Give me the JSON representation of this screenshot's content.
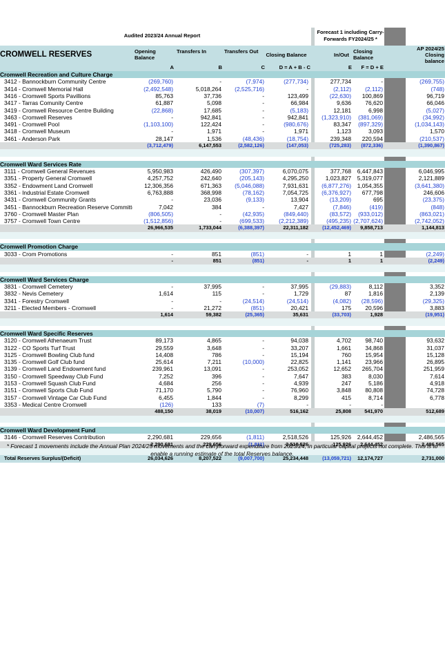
{
  "header": {
    "left_title": "Audited 2023/24 Annual Report",
    "right_title": "Forecast 1 including Carry-Forwards FY2024/25 *",
    "report_title": "CROMWELL RESERVES",
    "col_opening": "Opening Balance",
    "col_transfers_in": "Transfers In",
    "col_transfers_out": "Transfers Out",
    "col_closing": "Closing Balance",
    "col_inout": "In/Out",
    "col_closing2": "Closing Balance",
    "col_ap": "AP 2024/25 Closing balance",
    "code_a": "A",
    "code_b": "B",
    "code_c": "C",
    "code_d": "D = A + B - C",
    "code_e": "E",
    "code_f": "F = D + E"
  },
  "sections": [
    {
      "title": "Cromwell Recreation and Culture Charge",
      "rows": [
        [
          "3412 - Bannockburn Community Centre",
          "(269,760)",
          "-",
          "(7,974)",
          "(277,734)",
          "277,734",
          "-",
          "(269,755)"
        ],
        [
          "3414 - Cromwell Memorial Hall",
          "(2,492,548)",
          "5,018,264",
          "(2,525,716)",
          "-",
          "(2,112)",
          "(2,112)",
          "(748)"
        ],
        [
          "3416 - Cromwell Sports Pavillions",
          "85,763",
          "37,736",
          "-",
          "123,499",
          "(22,630)",
          "100,869",
          "96,719"
        ],
        [
          "3417 - Tarras Comunity Centre",
          "61,887",
          "5,098",
          "-",
          "66,984",
          "9,636",
          "76,620",
          "66,046"
        ],
        [
          "3419 - Cromwell Resource Centre Building",
          "(22,868)",
          "17,685",
          "-",
          "(5,183)",
          "12,181",
          "6,998",
          "(5,027)"
        ],
        [
          "3463 - Cromwell Reserves",
          "-",
          "942,841",
          "-",
          "942,841",
          "(1,323,910)",
          "(381,069)",
          "(34,992)"
        ],
        [
          "3491 - Cromwell Pool",
          "(1,103,100)",
          "122,424",
          "-",
          "(980,676)",
          "83,347",
          "(897,329)",
          "(1,034,143)"
        ],
        [
          "3418 - Cromwell Museum",
          "-",
          "1,971",
          "-",
          "1,971",
          "1,123",
          "3,093",
          "1,570"
        ],
        [
          "3461 - Anderson Park",
          "28,147",
          "1,536",
          "(48,436)",
          "(18,754)",
          "239,348",
          "220,594",
          "(210,537)"
        ]
      ],
      "total": [
        "(3,712,479)",
        "6,147,553",
        "(2,582,126)",
        "(147,053)",
        "(725,283)",
        "(872,336)",
        "(1,390,867)"
      ]
    },
    {
      "title": "Cromwell Ward Services Rate",
      "rows": [
        [
          "3111 - Cromwell General Revenues",
          "5,950,983",
          "426,490",
          "(307,397)",
          "6,070,075",
          "377,768",
          "6,447,843",
          "6,046,995"
        ],
        [
          "3351 - Property General Cromwell",
          "4,257,752",
          "242,640",
          "(205,143)",
          "4,295,250",
          "1,023,827",
          "5,319,077",
          "2,121,889"
        ],
        [
          "3352 - Endowment Land Cromwell",
          "12,306,356",
          "671,363",
          "(5,046,088)",
          "7,931,631",
          "(6,877,276)",
          "1,054,355",
          "(3,641,380)"
        ],
        [
          "3361 - Industrial Estate Cromwell",
          "6,763,888",
          "368,998",
          "(78,162)",
          "7,054,725",
          "(6,376,927)",
          "677,798",
          "246,606"
        ],
        [
          "3431 - Cromwell Community Grants",
          "-",
          "23,036",
          "(9,133)",
          "13,904",
          "(13,209)",
          "695",
          "(23,375)"
        ],
        [
          "3451 - Bannockburn Recreation Reserve Committee",
          "7,042",
          "384",
          "-",
          "7,427",
          "(7,846)",
          "(419)",
          "(848)"
        ],
        [
          "3760 - Cromwell Master Plan",
          "(806,505)",
          "-",
          "(42,935)",
          "(849,440)",
          "(83,572)",
          "(933,012)",
          "(863,021)"
        ],
        [
          "3757 - Cromwell Town Centre",
          "(1,512,856)",
          "-",
          "(699,533)",
          "(2,212,389)",
          "(495,235)",
          "(2,707,624)",
          "(2,742,052)"
        ]
      ],
      "total": [
        "26,966,535",
        "1,733,044",
        "(6,388,397)",
        "22,311,182",
        "(12,452,469)",
        "9,858,713",
        "1,144,813"
      ]
    },
    {
      "title": "Cromwell Promotion Charge",
      "rows": [
        [
          "3033 - Crom Promotions",
          "-",
          "851",
          "(851)",
          "-",
          "1",
          "1",
          "(2,249)"
        ]
      ],
      "total": [
        "-",
        "851",
        "(851)",
        "-",
        "1",
        "1",
        "(2,249)"
      ]
    },
    {
      "title": "Cromwell Ward Services Charge",
      "rows": [
        [
          "3831 - Cromwell Cemetery",
          "-",
          "37,995",
          "-",
          "37,995",
          "(29,883)",
          "8,112",
          "3,352"
        ],
        [
          "3832 - Nevis Cemetery",
          "1,614",
          "115",
          "-",
          "1,729",
          "87",
          "1,816",
          "2,139"
        ],
        [
          "3341 - Forestry Cromwell",
          "-",
          "-",
          "(24,514)",
          "(24,514)",
          "(4,082)",
          "(28,596)",
          "(29,325)"
        ],
        [
          "3211 - Elected Members - Cromwell",
          "-",
          "21,272",
          "(851)",
          "20,421",
          "175",
          "20,596",
          "3,883"
        ]
      ],
      "total": [
        "1,614",
        "59,382",
        "(25,365)",
        "35,631",
        "(33,703)",
        "1,928",
        "(19,951)"
      ]
    },
    {
      "title": "Cromwell Ward Specific Reserves",
      "rows": [
        [
          "3120 - Cromwell Athenaeum Trust",
          "89,173",
          "4,865",
          "-",
          "94,038",
          "4,702",
          "98,740",
          "93,632"
        ],
        [
          "3122 - CO Sports Turf Trust",
          "29,559",
          "3,648",
          "-",
          "33,207",
          "1,661",
          "34,868",
          "31,037"
        ],
        [
          "3125 - Cromwell Bowling Club fund",
          "14,408",
          "786",
          "-",
          "15,194",
          "760",
          "15,954",
          "15,128"
        ],
        [
          "3135 - Cromwell Golf Club fund",
          "25,614",
          "7,211",
          "(10,000)",
          "22,825",
          "1,141",
          "23,966",
          "26,895"
        ],
        [
          "3139 - Cromwell Land Endowment fund",
          "239,961",
          "13,091",
          "-",
          "253,052",
          "12,652",
          "265,704",
          "251,959"
        ],
        [
          "3150 - Cromwell Speedway Club Fund",
          "7,252",
          "396",
          "-",
          "7,647",
          "383",
          "8,030",
          "7,614"
        ],
        [
          "3153 - Cromwell Squash Club Fund",
          "4,684",
          "256",
          "-",
          "4,939",
          "247",
          "5,186",
          "4,918"
        ],
        [
          "3151 - Cromwell Sports Club Fund",
          "71,170",
          "5,790",
          "-",
          "76,960",
          "3,848",
          "80,808",
          "74,728"
        ],
        [
          "3157 - Cromwell Vintage Car Club Fund",
          "6,455",
          "1,844",
          "-",
          "8,299",
          "415",
          "8,714",
          "6,778"
        ],
        [
          "3353 - Medical Centre Cromwell",
          "(126)",
          "133",
          "(7)",
          "-",
          "-",
          "-",
          ""
        ]
      ],
      "total": [
        "488,150",
        "38,019",
        "(10,007)",
        "516,162",
        "25,808",
        "541,970",
        "512,689"
      ]
    },
    {
      "title": "Cromwell Ward Development Fund",
      "rows": [
        [
          "3146 - Cromwell Reserves Contribution",
          "2,290,681",
          "229,656",
          "(1,811)",
          "2,518,526",
          "125,926",
          "2,644,452",
          "2,486,565"
        ]
      ],
      "total": [
        "2,290,681",
        "229,656",
        "(1,811)",
        "2,518,526",
        "125,926",
        "2,644,452",
        "2,486,565"
      ]
    }
  ],
  "grand_total": {
    "label": "Total Reserves Surplus/(Deficit)",
    "values": [
      "26,034,626",
      "8,207,522",
      "(9,007,700)",
      "25,234,448",
      "(13,059,721)",
      "12,174,727",
      "2,731,000"
    ]
  },
  "footnote": "* Forecast 1 movements include the Annual Plan 2024/25 movements and the carryforward expenditure from 2023/24, in particular capital projects not complete. This is to enable a running estimate of the total Reserves balance."
}
